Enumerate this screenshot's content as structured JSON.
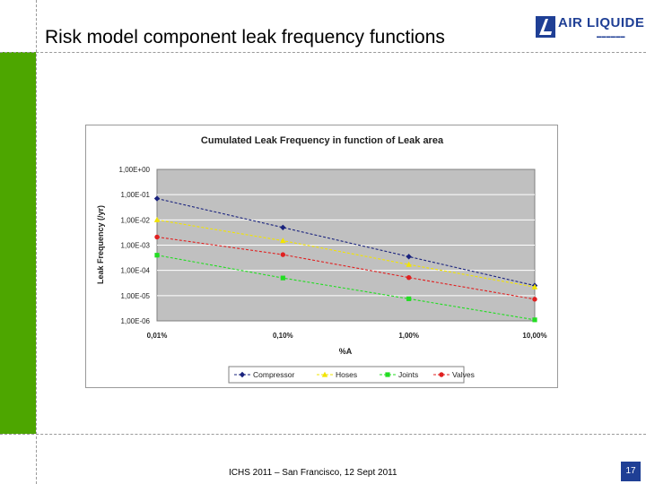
{
  "slide": {
    "title": "Risk model component leak frequency functions",
    "footer": "ICHS 2011 – San Francisco, 12 Sept 2011",
    "page_number": "17",
    "logo": {
      "text": "AIR LIQUIDE",
      "icon": "air-liquide-logo-icon"
    },
    "colors": {
      "accent_green": "#4da600",
      "brand_blue": "#1f3f95"
    }
  },
  "chart_data": {
    "type": "line",
    "title": "Cumulated Leak Frequency in function of Leak area",
    "xlabel": "%A",
    "ylabel": "Leak Frequency (/yr)",
    "x_scale": "log",
    "y_scale": "log",
    "categories": [
      "0,01%",
      "0,10%",
      "1,00%",
      "10,00%"
    ],
    "y_tick_labels": [
      "1,00E+00",
      "1,00E-01",
      "1,00E-02",
      "1,00E-03",
      "1,00E-04",
      "1,00E-05",
      "1,00E-06"
    ],
    "ylim": [
      1e-06,
      1
    ],
    "grid": "horizontal",
    "legend_position": "bottom",
    "series": [
      {
        "name": "Compressor",
        "color": "#1a237e",
        "marker": "diamond",
        "values": [
          0.07,
          0.005,
          0.00035,
          2.5e-05
        ]
      },
      {
        "name": "Hoses",
        "color": "#f2e400",
        "marker": "triangle",
        "values": [
          0.01,
          0.0015,
          0.00017,
          2.2e-05
        ]
      },
      {
        "name": "Joints",
        "color": "#22dd22",
        "marker": "square",
        "values": [
          0.0004,
          5e-05,
          7.5e-06,
          1.1e-06
        ]
      },
      {
        "name": "Valves",
        "color": "#e02020",
        "marker": "circle",
        "values": [
          0.0021,
          0.00042,
          5.2e-05,
          7.2e-06
        ]
      }
    ]
  }
}
